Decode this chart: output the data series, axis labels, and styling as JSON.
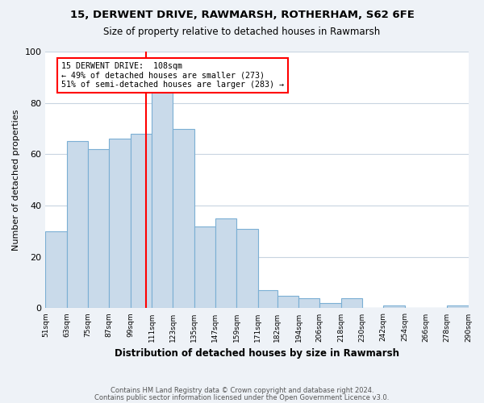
{
  "title1": "15, DERWENT DRIVE, RAWMARSH, ROTHERHAM, S62 6FE",
  "title2": "Size of property relative to detached houses in Rawmarsh",
  "xlabel": "Distribution of detached houses by size in Rawmarsh",
  "ylabel": "Number of detached properties",
  "bin_edges": [
    51,
    63,
    75,
    87,
    99,
    111,
    123,
    135,
    147,
    159,
    171,
    182,
    194,
    206,
    218,
    230,
    242,
    254,
    266,
    278,
    290
  ],
  "bar_values": [
    30,
    65,
    62,
    66,
    68,
    85,
    70,
    32,
    35,
    31,
    7,
    5,
    4,
    2,
    4,
    0,
    1,
    0,
    0,
    1
  ],
  "bar_color": "#c9daea",
  "bar_edgecolor": "#7bafd4",
  "reference_line_x": 108,
  "annotation_title": "15 DERWENT DRIVE:  108sqm",
  "annotation_line1": "← 49% of detached houses are smaller (273)",
  "annotation_line2": "51% of semi-detached houses are larger (283) →",
  "ylim": [
    0,
    100
  ],
  "yticks": [
    0,
    20,
    40,
    60,
    80,
    100
  ],
  "footer1": "Contains HM Land Registry data © Crown copyright and database right 2024.",
  "footer2": "Contains public sector information licensed under the Open Government Licence v3.0.",
  "bg_color": "#eef2f7",
  "plot_bg_color": "#ffffff",
  "grid_color": "#c8d4e0"
}
